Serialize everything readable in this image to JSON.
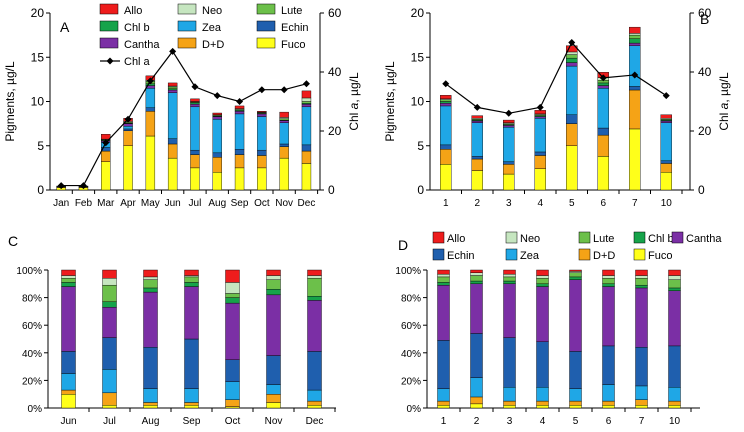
{
  "colors": {
    "Allo": "#ee1c1c",
    "Neo": "#c6e6c0",
    "Lute": "#6cc04a",
    "Chl b": "#16a34a",
    "Zea": "#1fa7e6",
    "Echin": "#1f5fae",
    "Cantha": "#7b2fa5",
    "D+D": "#f5a316",
    "Fuco": "#ffff1a"
  },
  "chart_data": [
    {
      "id": "A",
      "panel_label": "A",
      "type": "bar",
      "stacked": true,
      "categories": [
        "Jan",
        "Feb",
        "Mar",
        "Apr",
        "May",
        "Jun",
        "Jul",
        "Aug",
        "Sep",
        "Oct",
        "Nov",
        "Dec"
      ],
      "ylabel": "Pigments, µg/L",
      "ylim": [
        0,
        20
      ],
      "yticks": [
        "0",
        "5",
        "10",
        "15",
        "20"
      ],
      "y2label_main": "Chl ",
      "y2label_italic": "a",
      "y2label_unit": ", µg/L",
      "y2lim": [
        0,
        60
      ],
      "y2ticks": [
        "0",
        "20",
        "40",
        "60"
      ],
      "series_order": [
        "Fuco",
        "D+D",
        "Echin",
        "Zea",
        "Cantha",
        "Chl b",
        "Lute",
        "Neo",
        "Allo"
      ],
      "series": {
        "Fuco": [
          0.25,
          0.25,
          3.2,
          5.0,
          6.1,
          3.6,
          2.5,
          2.0,
          2.5,
          2.5,
          3.6,
          3.0
        ],
        "D+D": [
          0.1,
          0.1,
          1.2,
          1.7,
          2.8,
          1.6,
          1.5,
          1.7,
          1.5,
          1.4,
          1.3,
          1.4
        ],
        "Echin": [
          0.05,
          0.05,
          0.4,
          0.2,
          0.4,
          0.6,
          0.5,
          0.5,
          0.6,
          0.6,
          0.3,
          0.7
        ],
        "Zea": [
          0.05,
          0.05,
          0.6,
          0.3,
          2.2,
          5.2,
          4.9,
          3.8,
          4.0,
          3.8,
          2.4,
          4.3
        ],
        "Cantha": [
          0,
          0,
          0.15,
          0.3,
          0.3,
          0.3,
          0.3,
          0.3,
          0.3,
          0.3,
          0.25,
          0.3
        ],
        "Chl b": [
          0,
          0,
          0.05,
          0.05,
          0.2,
          0.15,
          0.15,
          0.05,
          0.1,
          0.05,
          0.05,
          0.1
        ],
        "Lute": [
          0,
          0,
          0.1,
          0.1,
          0.3,
          0.2,
          0.1,
          0.1,
          0.1,
          0.1,
          0.15,
          0.2
        ],
        "Neo": [
          0,
          0,
          0.05,
          0.1,
          0.1,
          0.1,
          0.05,
          0.05,
          0.1,
          0.05,
          0.15,
          0.4
        ],
        "Allo": [
          0,
          0,
          0.55,
          0.35,
          0.5,
          0.35,
          0.3,
          0.2,
          0.3,
          0.1,
          0.6,
          0.8
        ]
      },
      "line": {
        "name": "Chl a",
        "axis": "secondary",
        "values": [
          1.5,
          1.5,
          16,
          24,
          37,
          47,
          35,
          32,
          30,
          34,
          34,
          36
        ]
      },
      "legend": {
        "rows": [
          [
            {
              "key": "Allo",
              "label": "Allo"
            },
            {
              "key": "Neo",
              "label": "Neo"
            },
            {
              "key": "Lute",
              "label": "Lute"
            }
          ],
          [
            {
              "key": "Chl b",
              "label": "Chl b"
            },
            {
              "key": "Zea",
              "label": "Zea"
            },
            {
              "key": "Echin",
              "label": "Echin"
            }
          ],
          [
            {
              "key": "Cantha",
              "label": "Cantha"
            },
            {
              "key": "D+D",
              "label": "D+D"
            },
            {
              "key": "Fuco",
              "label": "Fuco"
            }
          ]
        ],
        "line_label": "Chl a"
      }
    },
    {
      "id": "B",
      "panel_label": "B",
      "type": "bar",
      "stacked": true,
      "categories": [
        "1",
        "2",
        "3",
        "4",
        "5",
        "6",
        "7",
        "10"
      ],
      "ylabel": "Pigments, µg/L",
      "ylim": [
        0,
        20
      ],
      "yticks": [
        "0",
        "5",
        "10",
        "15",
        "20"
      ],
      "y2label_main": "Chl ",
      "y2label_italic": "a",
      "y2label_unit": ", µg/L",
      "y2lim": [
        0,
        60
      ],
      "y2ticks": [
        "0",
        "20",
        "40",
        "60"
      ],
      "series_order": [
        "Fuco",
        "D+D",
        "Echin",
        "Zea",
        "Cantha",
        "Chl b",
        "Lute",
        "Neo",
        "Allo"
      ],
      "series": {
        "Fuco": [
          2.9,
          2.2,
          1.8,
          2.4,
          5.0,
          3.8,
          6.9,
          2.0
        ],
        "D+D": [
          1.7,
          1.3,
          1.1,
          1.5,
          2.5,
          2.4,
          4.4,
          1.0
        ],
        "Echin": [
          0.5,
          0.3,
          0.3,
          0.4,
          1.0,
          0.8,
          0.4,
          0.3
        ],
        "Zea": [
          4.4,
          3.8,
          3.9,
          3.8,
          5.5,
          4.5,
          4.6,
          4.3
        ],
        "Cantha": [
          0.3,
          0.2,
          0.2,
          0.2,
          0.4,
          0.3,
          0.3,
          0.2
        ],
        "Chl b": [
          0.2,
          0.1,
          0.1,
          0.1,
          0.5,
          0.3,
          0.5,
          0.1
        ],
        "Lute": [
          0.2,
          0.1,
          0.1,
          0.1,
          0.4,
          0.3,
          0.4,
          0.1
        ],
        "Neo": [
          0.1,
          0.1,
          0.1,
          0.1,
          0.3,
          0.3,
          0.2,
          0.1
        ],
        "Allo": [
          0.4,
          0.3,
          0.3,
          0.4,
          0.7,
          0.6,
          0.7,
          0.4
        ]
      },
      "line": {
        "name": "Chl a",
        "axis": "secondary",
        "values": [
          36,
          28,
          26,
          28,
          50,
          38,
          39,
          32
        ]
      }
    },
    {
      "id": "C",
      "panel_label": "C",
      "type": "bar",
      "stacked": true,
      "percent": true,
      "categories": [
        "Jun",
        "Jul",
        "Aug",
        "Sep",
        "Oct",
        "Nov",
        "Dec"
      ],
      "ylim": [
        0,
        100
      ],
      "yticks": [
        "0%",
        "20%",
        "40%",
        "60%",
        "80%",
        "100%"
      ],
      "series_order": [
        "Fuco",
        "D+D",
        "Zea",
        "Echin",
        "Cantha",
        "Chl b",
        "Lute",
        "Neo",
        "Allo"
      ],
      "series": {
        "Fuco": [
          10,
          2,
          2,
          2,
          1,
          4,
          2
        ],
        "D+D": [
          3,
          9,
          2,
          2,
          5,
          6,
          3
        ],
        "Zea": [
          12,
          17,
          10,
          10,
          13,
          7,
          8
        ],
        "Echin": [
          16,
          23,
          30,
          36,
          16,
          21,
          28
        ],
        "Cantha": [
          47,
          22,
          40,
          38,
          41,
          44,
          37
        ],
        "Chl b": [
          3,
          4,
          3,
          3,
          4,
          4,
          3
        ],
        "Lute": [
          3,
          12,
          6,
          4,
          3,
          7,
          13
        ],
        "Neo": [
          2,
          5,
          2,
          1,
          8,
          3,
          2
        ],
        "Allo": [
          4,
          6,
          5,
          4,
          9,
          4,
          4
        ]
      }
    },
    {
      "id": "D",
      "panel_label": "D",
      "type": "bar",
      "stacked": true,
      "percent": true,
      "categories": [
        "1",
        "2",
        "3",
        "4",
        "5",
        "6",
        "7",
        "10"
      ],
      "ylim": [
        0,
        100
      ],
      "yticks": [
        "0%",
        "20%",
        "40%",
        "60%",
        "80%",
        "100%"
      ],
      "series_order": [
        "Fuco",
        "D+D",
        "Zea",
        "Echin",
        "Cantha",
        "Chl b",
        "Lute",
        "Neo",
        "Allo"
      ],
      "series": {
        "Fuco": [
          2,
          3,
          2,
          2,
          2,
          2,
          2,
          2
        ],
        "D+D": [
          3,
          5,
          3,
          3,
          3,
          3,
          4,
          3
        ],
        "Zea": [
          9,
          14,
          10,
          10,
          9,
          12,
          10,
          10
        ],
        "Echin": [
          35,
          32,
          36,
          33,
          27,
          28,
          28,
          30
        ],
        "Cantha": [
          40,
          36,
          39,
          40,
          52,
          43,
          43,
          40
        ],
        "Chl b": [
          2,
          2,
          2,
          2,
          2,
          2,
          2,
          2
        ],
        "Lute": [
          4,
          4,
          3,
          4,
          3,
          4,
          5,
          6
        ],
        "Neo": [
          2,
          2,
          2,
          2,
          1,
          2,
          2,
          3
        ],
        "Allo": [
          3,
          2,
          3,
          4,
          1,
          4,
          4,
          4
        ]
      },
      "legend": {
        "rows": [
          [
            {
              "key": "Allo",
              "label": "Allo"
            },
            {
              "key": "Neo",
              "label": "Neo"
            },
            {
              "key": "Lute",
              "label": "Lute"
            },
            {
              "key": "Chl b",
              "label": "Chl b"
            },
            {
              "key": "Cantha",
              "label": "Cantha"
            }
          ],
          [
            {
              "key": "Echin",
              "label": "Echin"
            },
            {
              "key": "Zea",
              "label": "Zea"
            },
            {
              "key": "D+D",
              "label": "D+D"
            },
            {
              "key": "Fuco",
              "label": "Fuco"
            }
          ]
        ]
      }
    }
  ]
}
